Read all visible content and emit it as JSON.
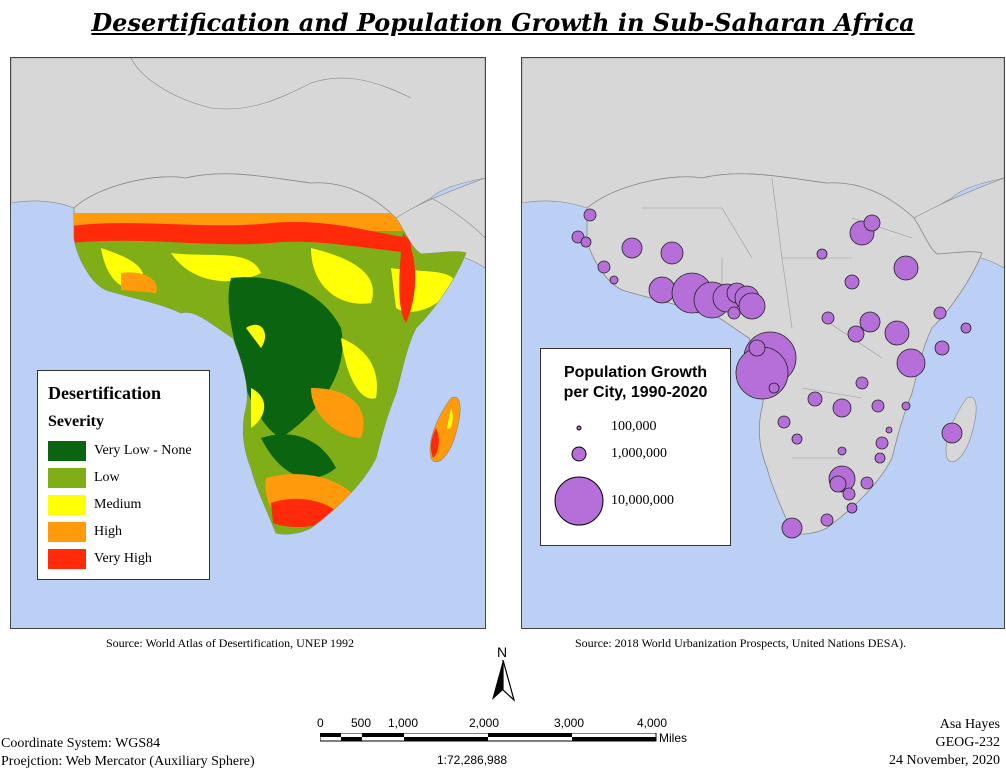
{
  "title": "Desertification and Population Growth in Sub-Saharan Africa",
  "left_map": {
    "legend": {
      "title": "Desertification",
      "subtitle": "Severity",
      "items": [
        {
          "label": "Very Low - None",
          "color": "#0a6410"
        },
        {
          "label": "Low",
          "color": "#7fae17"
        },
        {
          "label": "Medium",
          "color": "#ffff05"
        },
        {
          "label": "High",
          "color": "#ff9a0c"
        },
        {
          "label": "Very High",
          "color": "#ff2a0a"
        }
      ]
    },
    "source": "Source: World Atlas of Desertification, UNEP 1992"
  },
  "right_map": {
    "legend": {
      "title_line1": "Population Growth",
      "title_line2": "per City, 1990-2020",
      "items": [
        "100,000",
        "1,000,000",
        "10,000,000"
      ],
      "bubble_color": "#b66fd8"
    },
    "source": "Source: 2018 World Urbanization Prospects, United Nations DESA)."
  },
  "north_arrow": "N",
  "scale_bar": {
    "ticks": [
      "0",
      "500",
      "1,000",
      "2,000",
      "3,000",
      "4,000"
    ],
    "unit": "Miles",
    "ratio": "1:72,286,988"
  },
  "footer_left": {
    "line1": "Coordinate System: WGS84",
    "line2": "Proejction: Web Mercator (Auxiliary Sphere)"
  },
  "footer_right": {
    "line1": "Asa Hayes",
    "line2": "GEOG-232",
    "line3": "24 November, 2020"
  },
  "colors": {
    "ocean": "#bcd0f5",
    "land": "#d7d7d7"
  }
}
